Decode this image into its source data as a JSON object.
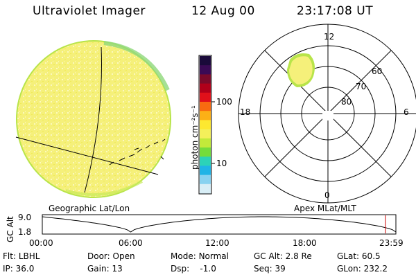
{
  "header": {
    "instrument": "Ultraviolet Imager",
    "date": "12 Aug 00",
    "time": "23:17:08 UT"
  },
  "colorbar": {
    "unit_label": "photon cm⁻²s⁻¹",
    "scale": "log",
    "ticks": [
      "100",
      "10"
    ],
    "colors": [
      "#1a0a3a",
      "#3a0a55",
      "#7a0a2a",
      "#b0001a",
      "#e0101a",
      "#f86a10",
      "#fcb016",
      "#fde830",
      "#f4f05a",
      "#c2ea3a",
      "#74dc3c",
      "#2cd2b8",
      "#20b4e6",
      "#88d2f0",
      "#d8eef6"
    ]
  },
  "left_panel": {
    "caption": "Geographic Lat/Lon",
    "disk_color": "#f5f080",
    "limb_color": "#b6e24a"
  },
  "right_panel": {
    "caption": "Apex MLat/MLT",
    "mlt_labels": {
      "top": "12",
      "bottom": "0",
      "left": "18",
      "right": "6"
    },
    "mlat_labels": [
      "60",
      "70",
      "80"
    ]
  },
  "timeline": {
    "ylabel": "GC Alt",
    "y_ticks": [
      "9.0",
      "1.8"
    ],
    "x_ticks": [
      "00:00",
      "06:00",
      "12:00",
      "18:00",
      "23:59"
    ],
    "current_time_marker_hours": 23.29,
    "marker_color": "#cc0000"
  },
  "status": {
    "row1": [
      {
        "label": "Flt:",
        "value": "LBHL"
      },
      {
        "label": "Door:",
        "value": "Open"
      },
      {
        "label": "Mode:",
        "value": "Normal"
      },
      {
        "label": "GC Alt:",
        "value": "2.8 Re"
      },
      {
        "label": "GLat:",
        "value": "60.5"
      }
    ],
    "row2": [
      {
        "label": "IP:",
        "value": "36.0"
      },
      {
        "label": "Gain:",
        "value": "13"
      },
      {
        "label": "Dsp:",
        "value": "-1.0"
      },
      {
        "label": "Seq:",
        "value": "39"
      },
      {
        "label": "GLon:",
        "value": "232.2"
      }
    ]
  }
}
